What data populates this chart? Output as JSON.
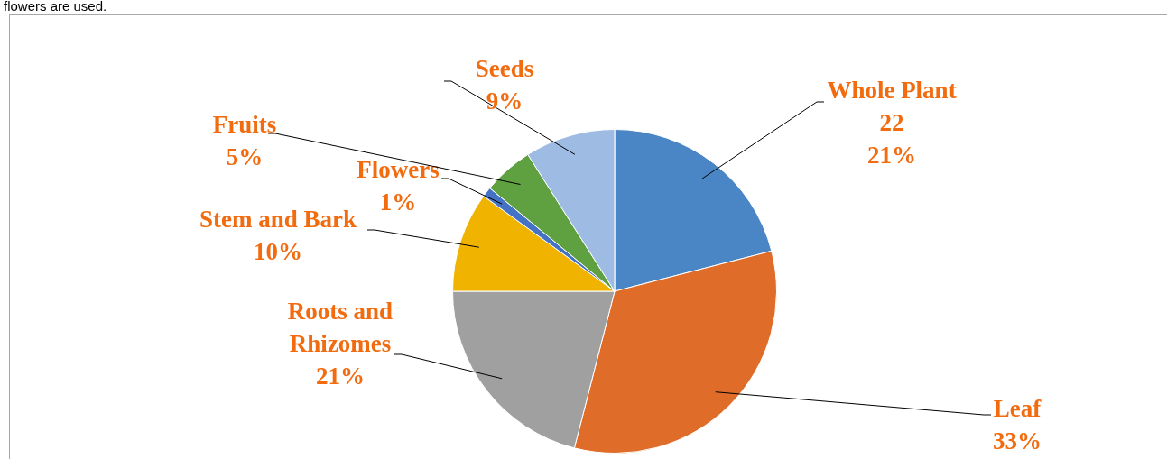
{
  "chart_data": {
    "type": "pie",
    "categories": [
      "Whole Plant",
      "Leaf",
      "Roots and Rhizomes",
      "Stem and Bark",
      "Flowers",
      "Fruits",
      "Seeds"
    ],
    "values": [
      21,
      33,
      21,
      10,
      1,
      5,
      9
    ],
    "colors": [
      "#4a86c5",
      "#e06c2a",
      "#a0a0a0",
      "#f0b400",
      "#4472c4",
      "#5fa040",
      "#9dbbe3"
    ],
    "value_labels": [
      "22\n21%",
      "33%",
      "21%",
      "10%",
      "1%",
      "5%",
      "9%"
    ],
    "annotations": [
      "flowers are used."
    ]
  }
}
